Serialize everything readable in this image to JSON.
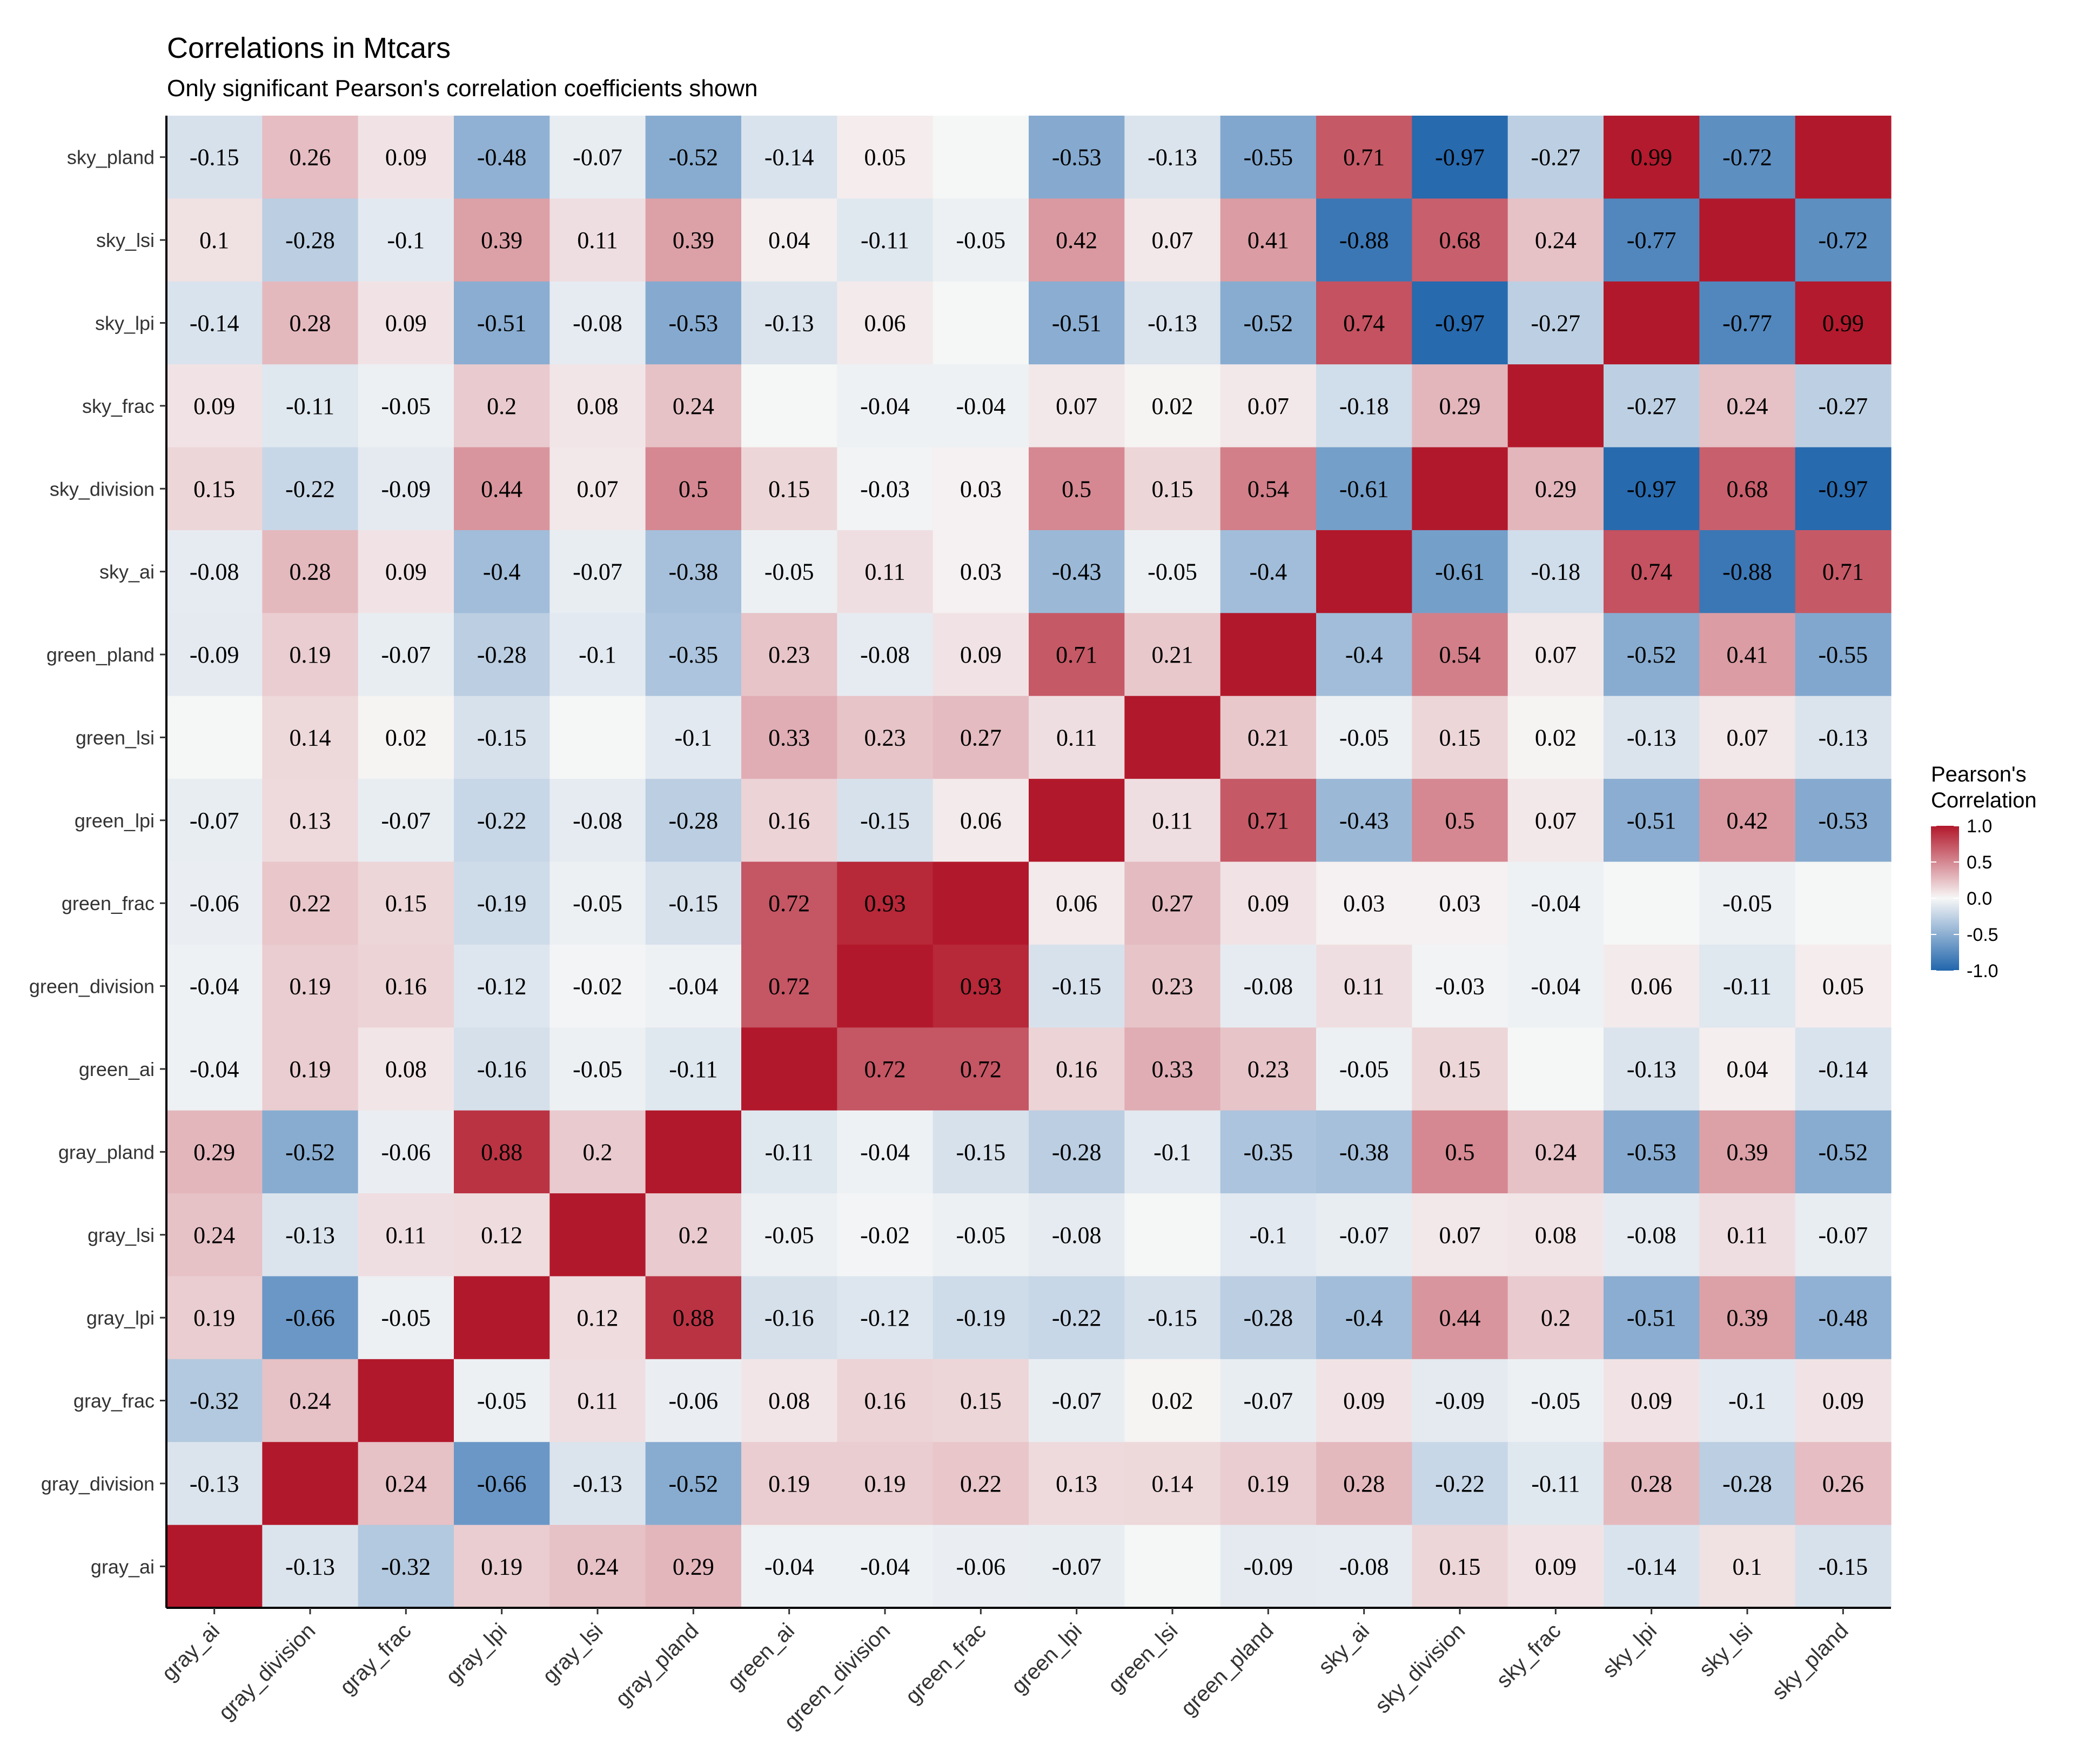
{
  "chart_data": {
    "type": "heatmap",
    "title": "Correlations in Mtcars",
    "subtitle": "Only significant Pearson's correlation coefficients shown",
    "x_labels": [
      "gray_ai",
      "gray_division",
      "gray_frac",
      "gray_lpi",
      "gray_lsi",
      "gray_pland",
      "green_ai",
      "green_division",
      "green_frac",
      "green_lpi",
      "green_lsi",
      "green_pland",
      "sky_ai",
      "sky_division",
      "sky_frac",
      "sky_lpi",
      "sky_lsi",
      "sky_pland"
    ],
    "y_labels": [
      "sky_pland",
      "sky_lsi",
      "sky_lpi",
      "sky_frac",
      "sky_division",
      "sky_ai",
      "green_pland",
      "green_lsi",
      "green_lpi",
      "green_frac",
      "green_division",
      "green_ai",
      "gray_pland",
      "gray_lsi",
      "gray_lpi",
      "gray_frac",
      "gray_division",
      "gray_ai"
    ],
    "values": [
      [
        -0.15,
        0.26,
        0.09,
        -0.48,
        -0.07,
        -0.52,
        -0.14,
        0.05,
        null,
        -0.53,
        -0.13,
        -0.55,
        0.71,
        -0.97,
        -0.27,
        0.99,
        -0.72,
        1.0
      ],
      [
        0.1,
        -0.28,
        -0.1,
        0.39,
        0.11,
        0.39,
        0.04,
        -0.11,
        -0.05,
        0.42,
        0.07,
        0.41,
        -0.88,
        0.68,
        0.24,
        -0.77,
        1.0,
        -0.72
      ],
      [
        -0.14,
        0.28,
        0.09,
        -0.51,
        -0.08,
        -0.53,
        -0.13,
        0.06,
        null,
        -0.51,
        -0.13,
        -0.52,
        0.74,
        -0.97,
        -0.27,
        1.0,
        -0.77,
        0.99
      ],
      [
        0.09,
        -0.11,
        -0.05,
        0.2,
        0.08,
        0.24,
        null,
        -0.04,
        -0.04,
        0.07,
        0.02,
        0.07,
        -0.18,
        0.29,
        1.0,
        -0.27,
        0.24,
        -0.27
      ],
      [
        0.15,
        -0.22,
        -0.09,
        0.44,
        0.07,
        0.5,
        0.15,
        -0.03,
        0.03,
        0.5,
        0.15,
        0.54,
        -0.61,
        1.0,
        0.29,
        -0.97,
        0.68,
        -0.97
      ],
      [
        -0.08,
        0.28,
        0.09,
        -0.4,
        -0.07,
        -0.38,
        -0.05,
        0.11,
        0.03,
        -0.43,
        -0.05,
        -0.4,
        1.0,
        -0.61,
        -0.18,
        0.74,
        -0.88,
        0.71
      ],
      [
        -0.09,
        0.19,
        -0.07,
        -0.28,
        -0.1,
        -0.35,
        0.23,
        -0.08,
        0.09,
        0.71,
        0.21,
        1.0,
        -0.4,
        0.54,
        0.07,
        -0.52,
        0.41,
        -0.55
      ],
      [
        null,
        0.14,
        0.02,
        -0.15,
        null,
        -0.1,
        0.33,
        0.23,
        0.27,
        0.11,
        1.0,
        0.21,
        -0.05,
        0.15,
        0.02,
        -0.13,
        0.07,
        -0.13
      ],
      [
        -0.07,
        0.13,
        -0.07,
        -0.22,
        -0.08,
        -0.28,
        0.16,
        -0.15,
        0.06,
        1.0,
        0.11,
        0.71,
        -0.43,
        0.5,
        0.07,
        -0.51,
        0.42,
        -0.53
      ],
      [
        -0.06,
        0.22,
        0.15,
        -0.19,
        -0.05,
        -0.15,
        0.72,
        0.93,
        1.0,
        0.06,
        0.27,
        0.09,
        0.03,
        0.03,
        -0.04,
        null,
        -0.05,
        null
      ],
      [
        -0.04,
        0.19,
        0.16,
        -0.12,
        -0.02,
        -0.04,
        0.72,
        1.0,
        0.93,
        -0.15,
        0.23,
        -0.08,
        0.11,
        -0.03,
        -0.04,
        0.06,
        -0.11,
        0.05
      ],
      [
        -0.04,
        0.19,
        0.08,
        -0.16,
        -0.05,
        -0.11,
        1.0,
        0.72,
        0.72,
        0.16,
        0.33,
        0.23,
        -0.05,
        0.15,
        null,
        -0.13,
        0.04,
        -0.14
      ],
      [
        0.29,
        -0.52,
        -0.06,
        0.88,
        0.2,
        1.0,
        -0.11,
        -0.04,
        -0.15,
        -0.28,
        -0.1,
        -0.35,
        -0.38,
        0.5,
        0.24,
        -0.53,
        0.39,
        -0.52
      ],
      [
        0.24,
        -0.13,
        0.11,
        0.12,
        1.0,
        0.2,
        -0.05,
        -0.02,
        -0.05,
        -0.08,
        null,
        -0.1,
        -0.07,
        0.07,
        0.08,
        -0.08,
        0.11,
        -0.07
      ],
      [
        0.19,
        -0.66,
        -0.05,
        1.0,
        0.12,
        0.88,
        -0.16,
        -0.12,
        -0.19,
        -0.22,
        -0.15,
        -0.28,
        -0.4,
        0.44,
        0.2,
        -0.51,
        0.39,
        -0.48
      ],
      [
        -0.32,
        0.24,
        1.0,
        -0.05,
        0.11,
        -0.06,
        0.08,
        0.16,
        0.15,
        -0.07,
        0.02,
        -0.07,
        0.09,
        -0.09,
        -0.05,
        0.09,
        -0.1,
        0.09
      ],
      [
        -0.13,
        1.0,
        0.24,
        -0.66,
        -0.13,
        -0.52,
        0.19,
        0.19,
        0.22,
        0.13,
        0.14,
        0.19,
        0.28,
        -0.22,
        -0.11,
        0.28,
        -0.28,
        0.26
      ],
      [
        1.0,
        -0.13,
        -0.32,
        0.19,
        0.24,
        0.29,
        -0.04,
        -0.04,
        -0.06,
        -0.07,
        null,
        -0.09,
        -0.08,
        0.15,
        0.09,
        -0.14,
        0.1,
        -0.15
      ]
    ],
    "hide_label_on_diagonal": true,
    "color_scale": {
      "low": "#2166ac",
      "mid": "#f7f7f7",
      "high": "#b2182b",
      "domain": [
        -1,
        0,
        1
      ],
      "blank_fill": "#f4f7f5"
    },
    "legend": {
      "title_lines": [
        "Pearson's",
        "Correlation"
      ],
      "ticks": [
        1.0,
        0.5,
        0.0,
        -0.5,
        -1.0
      ],
      "tick_labels": [
        "1.0",
        "0.5",
        "0.0",
        "-0.5",
        "-1.0"
      ],
      "placement": "right"
    }
  }
}
